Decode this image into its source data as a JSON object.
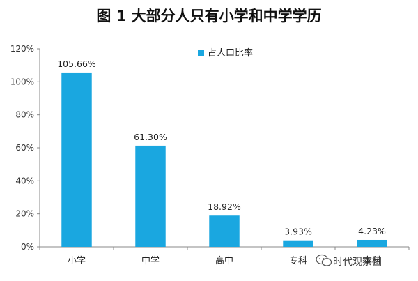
{
  "chart_data": {
    "type": "bar",
    "title": "图 1  大部分人只有小学和中学学历",
    "categories": [
      "小学",
      "中学",
      "高中",
      "专科",
      "本科"
    ],
    "series": [
      {
        "name": "占人口比率",
        "values": [
          105.66,
          61.3,
          18.92,
          3.93,
          4.23
        ],
        "labels": [
          "105.66%",
          "61.30%",
          "18.92%",
          "3.93%",
          "4.23%"
        ]
      }
    ],
    "ylim": [
      0,
      120
    ],
    "yticks": [
      0,
      20,
      40,
      60,
      80,
      100,
      120
    ],
    "ytick_labels": [
      "0%",
      "20%",
      "40%",
      "60%",
      "80%",
      "100%",
      "120%"
    ],
    "xlabel": "",
    "ylabel": "",
    "grid": false,
    "legend": "top-center",
    "color": "#1aa7e0"
  },
  "watermark": {
    "text": "时代观察团",
    "icon": "wechat-icon"
  }
}
